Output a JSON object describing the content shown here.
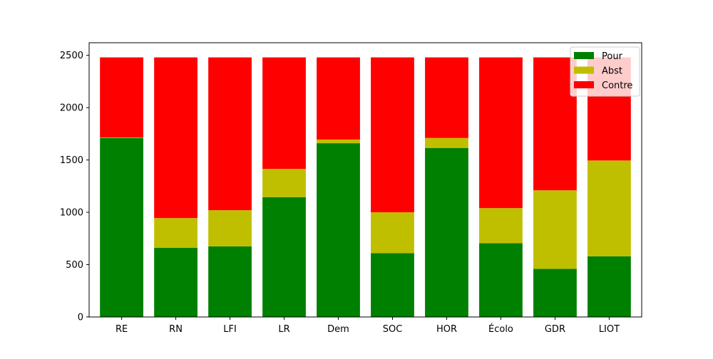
{
  "chart_data": {
    "type": "bar",
    "stacked": true,
    "categories": [
      "RE",
      "RN",
      "LFI",
      "LR",
      "Dem",
      "SOC",
      "HOR",
      "Écolo",
      "GDR",
      "LIOT"
    ],
    "series": [
      {
        "name": "Pour",
        "color": "#008000",
        "values": [
          1710,
          660,
          675,
          1145,
          1660,
          610,
          1615,
          705,
          460,
          580
        ]
      },
      {
        "name": "Abst",
        "color": "#bfbf00",
        "values": [
          5,
          285,
          345,
          270,
          35,
          390,
          95,
          335,
          750,
          915
        ]
      },
      {
        "name": "Contre",
        "color": "#ff0000",
        "values": [
          765,
          1535,
          1460,
          1065,
          785,
          1480,
          770,
          1440,
          1270,
          985
        ]
      }
    ],
    "ylim": [
      0,
      2620
    ],
    "yticks": [
      0,
      500,
      1000,
      1500,
      2000,
      2500
    ],
    "legend_position": "top-right",
    "grid": false,
    "title": "",
    "xlabel": "",
    "ylabel": ""
  }
}
